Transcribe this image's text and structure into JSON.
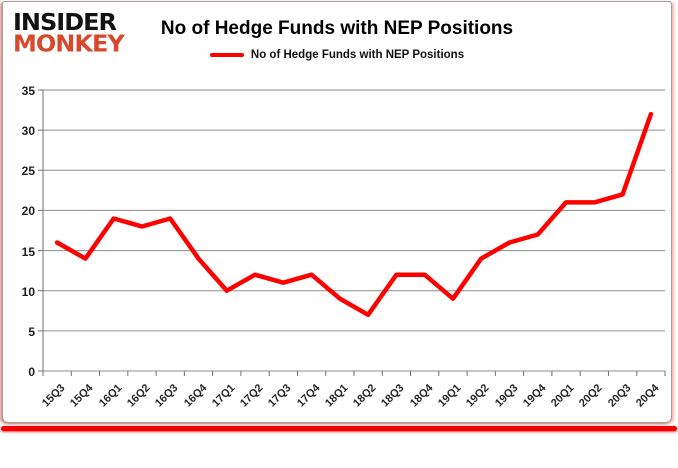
{
  "logo": {
    "line1": "INSIDER",
    "line2": "MONKEY"
  },
  "title": "No of Hedge Funds with NEP Positions",
  "legend": {
    "label": "No of Hedge Funds with NEP Positions",
    "color": "#ff0000"
  },
  "chart_data": {
    "type": "line",
    "title": "No of Hedge Funds with NEP Positions",
    "categories": [
      "15Q3",
      "15Q4",
      "16Q1",
      "16Q2",
      "16Q3",
      "16Q4",
      "17Q1",
      "17Q2",
      "17Q3",
      "17Q4",
      "18Q1",
      "18Q2",
      "18Q3",
      "18Q4",
      "19Q1",
      "19Q2",
      "19Q3",
      "19Q4",
      "20Q1",
      "20Q2",
      "20Q3",
      "20Q4"
    ],
    "series": [
      {
        "name": "No of Hedge Funds with NEP Positions",
        "color": "#ff0000",
        "values": [
          16,
          14,
          19,
          18,
          19,
          14,
          10,
          12,
          11,
          12,
          9,
          7,
          12,
          12,
          9,
          14,
          16,
          17,
          21,
          21,
          22,
          32
        ]
      }
    ],
    "xlabel": "",
    "ylabel": "",
    "ylim": [
      0,
      35
    ],
    "yticks": [
      0,
      5,
      10,
      15,
      20,
      25,
      30,
      35
    ],
    "grid": true,
    "legend_position": "top-center"
  },
  "colors": {
    "line": "#ff0000",
    "grid": "#8c8c8c",
    "axis": "#707070",
    "tick_label": "#262626",
    "logo_black": "#121212",
    "logo_red": "#d7492c",
    "accent_red": "#f40000"
  }
}
